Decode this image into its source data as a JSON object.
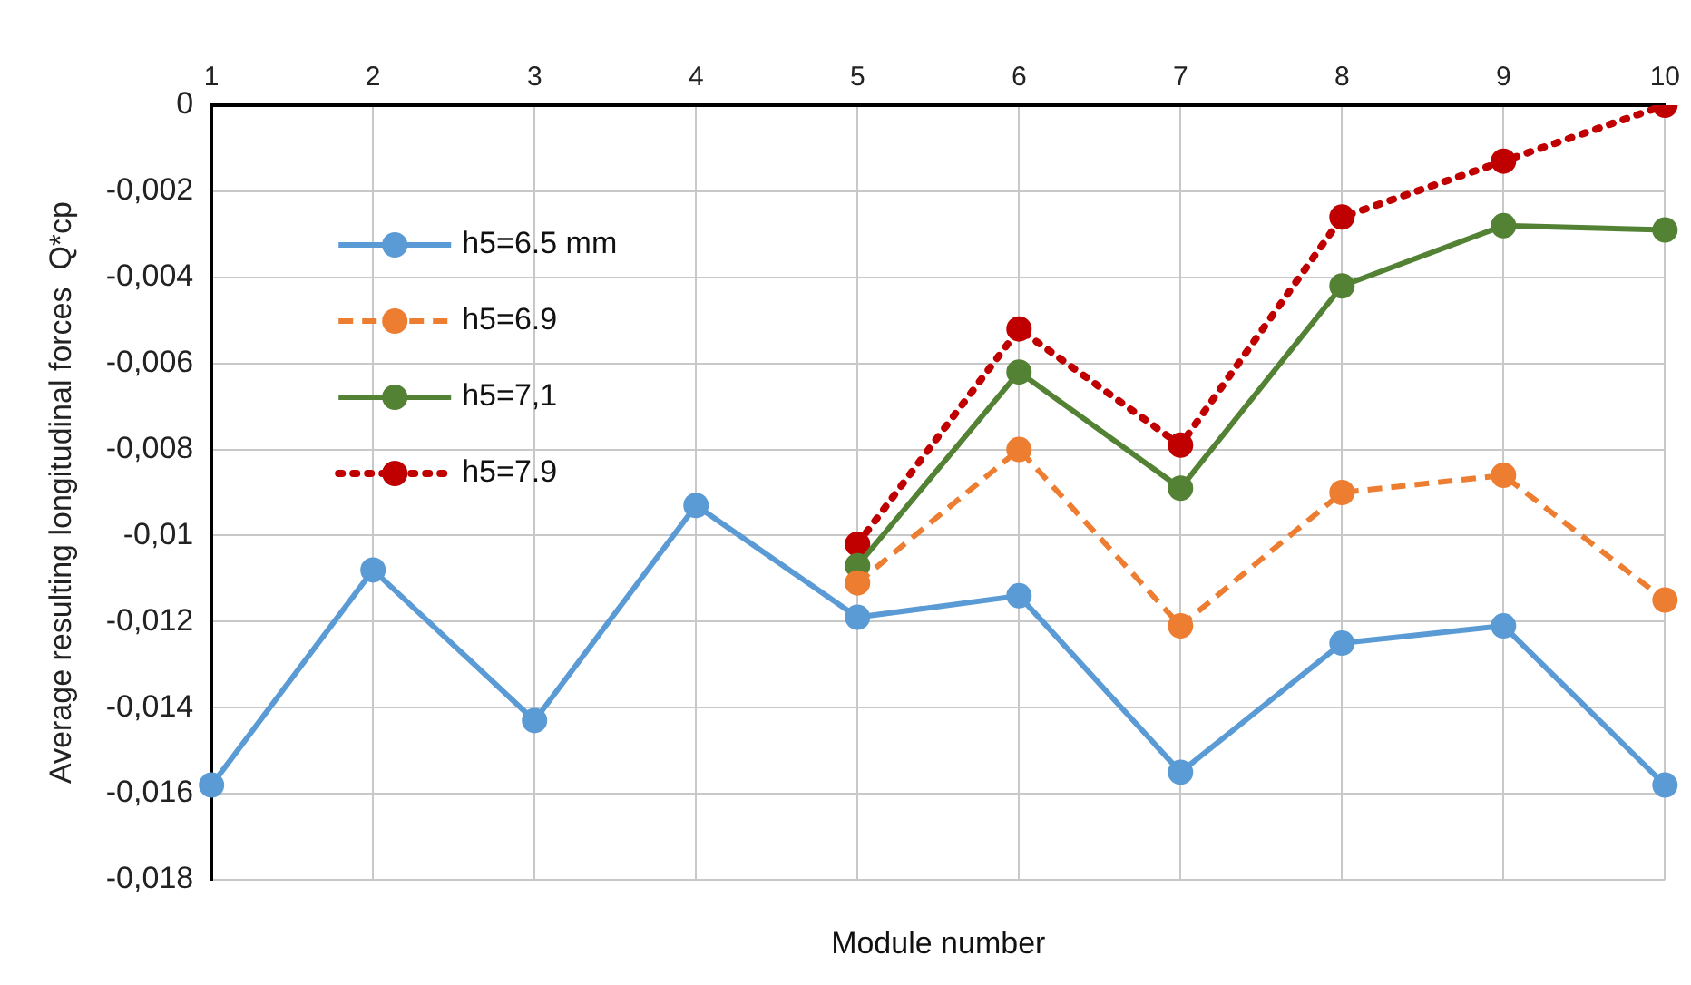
{
  "chart_data": {
    "type": "line",
    "xlabel": "Module number",
    "ylabel": "Average resulting longitudinal forces  Q*cp",
    "categories": [
      "1",
      "2",
      "3",
      "4",
      "5",
      "6",
      "7",
      "8",
      "9",
      "10"
    ],
    "series": [
      {
        "name": "h5=6.5 mm",
        "color": "#5b9bd5",
        "line_style": "solid",
        "values": [
          -0.0158,
          -0.0108,
          -0.0143,
          -0.0093,
          -0.0119,
          -0.0114,
          -0.0155,
          -0.0125,
          -0.0121,
          -0.0158
        ]
      },
      {
        "name": "h5=6.9",
        "color": "#ed7d31",
        "line_style": "dashed",
        "values": [
          null,
          null,
          null,
          null,
          -0.0111,
          -0.008,
          -0.0121,
          -0.009,
          -0.0086,
          -0.0115
        ]
      },
      {
        "name": "h5=7,1",
        "color": "#548235",
        "line_style": "solid",
        "values": [
          null,
          null,
          null,
          null,
          -0.0107,
          -0.0062,
          -0.0089,
          -0.0042,
          -0.0028,
          -0.0029
        ]
      },
      {
        "name": "h5=7.9",
        "color": "#c00000",
        "line_style": "dotted",
        "values": [
          null,
          null,
          null,
          null,
          -0.0102,
          -0.0052,
          -0.0079,
          -0.0026,
          -0.0013,
          0
        ]
      }
    ],
    "ylim": [
      -0.018,
      0
    ],
    "yticks": [
      0,
      {
        "value": -0.002,
        "label": "-0,002"
      },
      {
        "value": -0.004,
        "label": "-0,004"
      },
      {
        "value": -0.006,
        "label": "-0,006"
      },
      {
        "value": -0.008,
        "label": "-0,008"
      },
      {
        "value": -0.01,
        "label": "-0,01"
      },
      {
        "value": -0.012,
        "label": "-0,012"
      },
      {
        "value": -0.014,
        "label": "-0,014"
      },
      {
        "value": -0.016,
        "label": "-0,016"
      },
      {
        "value": -0.018,
        "label": "-0,018"
      }
    ],
    "grid": true,
    "legend": "top left",
    "marker": "circle"
  }
}
